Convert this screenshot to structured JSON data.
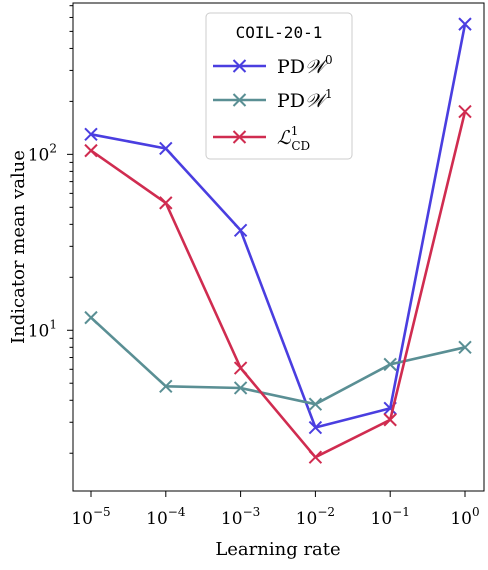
{
  "chart_data": {
    "type": "line",
    "xlabel": "Learning rate",
    "ylabel": "Indicator mean value",
    "x": [
      1e-05,
      0.0001,
      0.001,
      0.01,
      0.1,
      1
    ],
    "x_tick_labels": [
      {
        "base": "10",
        "exp": "−5"
      },
      {
        "base": "10",
        "exp": "−4"
      },
      {
        "base": "10",
        "exp": "−3"
      },
      {
        "base": "10",
        "exp": "−2"
      },
      {
        "base": "10",
        "exp": "−1"
      },
      {
        "base": "10",
        "exp": "0"
      }
    ],
    "x_scale": "log",
    "y_scale": "log",
    "ylim": [
      1.22,
      725
    ],
    "y_tick_labels": [
      {
        "value": 10,
        "base": "10",
        "exp": "1"
      },
      {
        "value": 100,
        "base": "10",
        "exp": "2"
      }
    ],
    "grid": false,
    "legend": {
      "title": "COIL-20-1",
      "placement": "top-center"
    },
    "series": [
      {
        "name_main": "PD",
        "name_script": "𝒲",
        "name_sup": "0",
        "name_sub": "",
        "color": "#4a3ee0",
        "values": [
          130,
          108,
          37,
          2.8,
          3.6,
          550
        ]
      },
      {
        "name_main": "PD",
        "name_script": "𝒲",
        "name_sup": "1",
        "name_sub": "",
        "color": "#5a8f94",
        "values": [
          11.8,
          4.8,
          4.7,
          3.8,
          6.4,
          8.0
        ]
      },
      {
        "name_main": "",
        "name_script": "ℒ",
        "name_sup": "1",
        "name_sub": "CD",
        "color": "#d02c50",
        "values": [
          105,
          53,
          6.1,
          1.9,
          3.1,
          175
        ]
      }
    ]
  }
}
